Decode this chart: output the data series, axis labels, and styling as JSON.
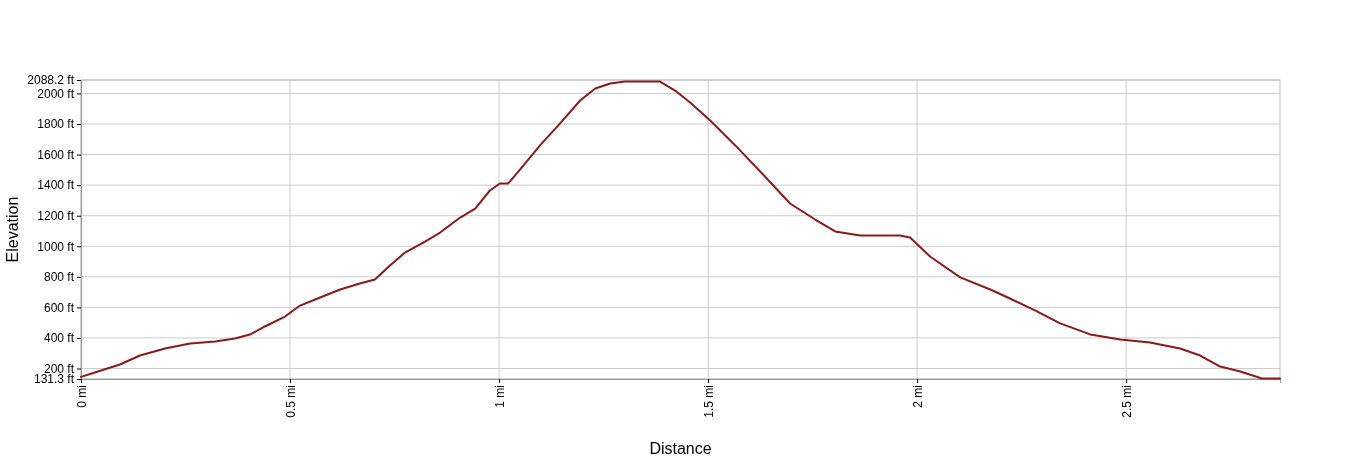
{
  "chart_data": {
    "type": "line",
    "xlabel": "Distance",
    "ylabel": "Elevation",
    "xlim": [
      0,
      2.868
    ],
    "ylim": [
      131.3,
      2088.2
    ],
    "xticks": [
      {
        "value": 0,
        "label": "0 mi"
      },
      {
        "value": 0.5,
        "label": "0.5 mi"
      },
      {
        "value": 1,
        "label": "1 mi"
      },
      {
        "value": 1.5,
        "label": "1.5 mi"
      },
      {
        "value": 2,
        "label": "2 mi"
      },
      {
        "value": 2.5,
        "label": "2.5 mi"
      }
    ],
    "yticks": [
      {
        "value": 131.3,
        "label": "131.3 ft"
      },
      {
        "value": 200,
        "label": "200 ft"
      },
      {
        "value": 400,
        "label": "400 ft"
      },
      {
        "value": 600,
        "label": "600 ft"
      },
      {
        "value": 800,
        "label": "800 ft"
      },
      {
        "value": 1000,
        "label": "1000 ft"
      },
      {
        "value": 1200,
        "label": "1200 ft"
      },
      {
        "value": 1400,
        "label": "1400 ft"
      },
      {
        "value": 1600,
        "label": "1600 ft"
      },
      {
        "value": 1800,
        "label": "1800 ft"
      },
      {
        "value": 2000,
        "label": "2000 ft"
      },
      {
        "value": 2088.2,
        "label": "2088.2 ft"
      }
    ],
    "grid": true,
    "series": [
      {
        "color": "#8b1a1a",
        "x": [
          0,
          0.033,
          0.093,
          0.141,
          0.201,
          0.261,
          0.321,
          0.368,
          0.404,
          0.44,
          0.488,
          0.524,
          0.572,
          0.62,
          0.667,
          0.703,
          0.739,
          0.775,
          0.823,
          0.859,
          0.907,
          0.943,
          0.978,
          1.002,
          1.022,
          1.05,
          1.098,
          1.146,
          1.194,
          1.23,
          1.266,
          1.301,
          1.385,
          1.421,
          1.457,
          1.505,
          1.565,
          1.636,
          1.696,
          1.756,
          1.804,
          1.864,
          1.959,
          1.983,
          2.031,
          2.103,
          2.175,
          2.222,
          2.282,
          2.342,
          2.414,
          2.486,
          2.557,
          2.629,
          2.677,
          2.725,
          2.773,
          2.825,
          2.868
        ],
        "values": [
          145,
          174,
          226,
          285,
          331,
          364,
          377,
          396,
          422,
          475,
          540,
          612,
          665,
          717,
          756,
          782,
          874,
          959,
          1031,
          1090,
          1188,
          1247,
          1365,
          1411,
          1411,
          1502,
          1660,
          1804,
          1954,
          2033,
          2065,
          2078,
          2078,
          2019,
          1941,
          1823,
          1660,
          1457,
          1280,
          1175,
          1097,
          1070,
          1070,
          1057,
          933,
          796,
          717,
          658,
          580,
          495,
          423,
          390,
          370,
          331,
          285,
          213,
          180,
          135,
          135
        ]
      }
    ]
  }
}
